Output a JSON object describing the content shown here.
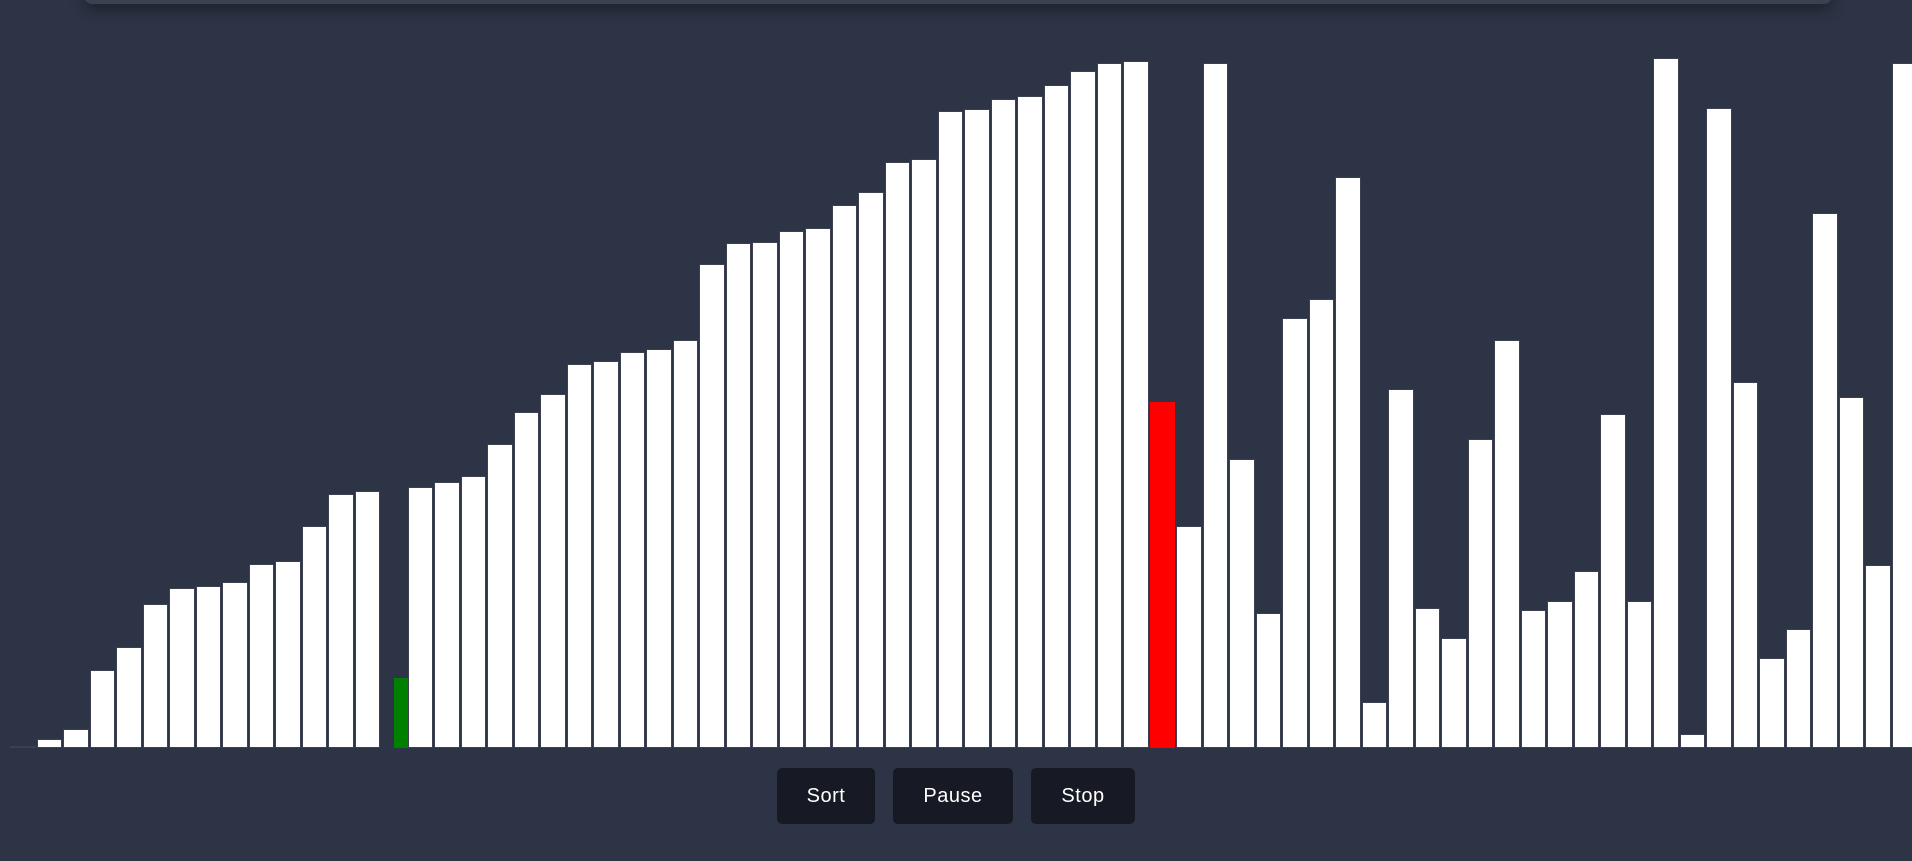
{
  "controls": {
    "sort_label": "Sort",
    "pause_label": "Pause",
    "stop_label": "Stop"
  },
  "colors": {
    "background": "#2c3445",
    "bar": "#ffffff",
    "bar_border": "#3b4150",
    "comparing": "#ff0000",
    "inserting": "#008000",
    "button_bg": "#171a24",
    "button_text": "#ffffff"
  },
  "visualizer": {
    "max_value": 100,
    "empty_slot_index": 14,
    "inserting_index": 14,
    "comparing_index": 43,
    "values": [
      0.2,
      1.3,
      2.7,
      11.3,
      14.6,
      20.9,
      23.2,
      23.5,
      24.0,
      26.7,
      27.1,
      32.2,
      36.8,
      37.3,
      0,
      37.9,
      38.5,
      39.4,
      44.1,
      48.7,
      51.3,
      55.6,
      56.1,
      57.4,
      57.9,
      59.2,
      70.2,
      73.2,
      73.4,
      75.0,
      75.3,
      78.7,
      80.6,
      85.0,
      85.3,
      92.3,
      92.6,
      94.0,
      94.5,
      96.1,
      98.1,
      99.3,
      99.5,
      50.2,
      32.2,
      99.3,
      41.9,
      19.6,
      62.3,
      65.1,
      82.8,
      6.7,
      52.0,
      20.3,
      16.0,
      44.8,
      59.2,
      20.0,
      21.3,
      25.7,
      48.4,
      21.3,
      100.0,
      2.1,
      92.7,
      53.0,
      13.1,
      17.2,
      77.5,
      50.8,
      26.5,
      99.3
    ]
  }
}
